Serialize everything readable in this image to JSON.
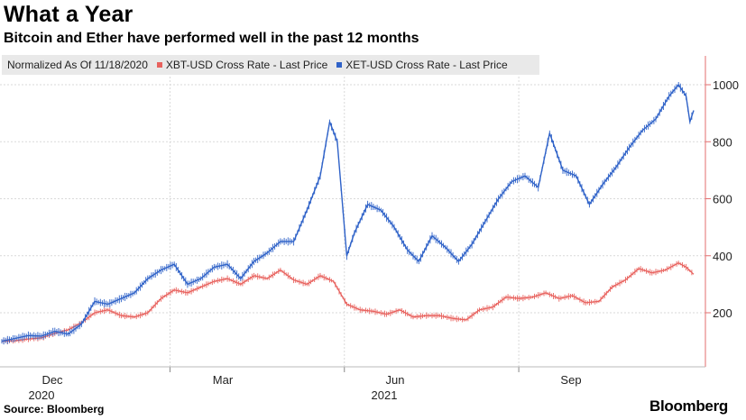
{
  "header": {
    "title": "What a Year",
    "subtitle": "Bitcoin and Ether have performed well in the past 12 months"
  },
  "legend": {
    "normalization": "Normalized As Of 11/18/2020",
    "items": [
      {
        "label": "XBT-USD Cross Rate - Last Price",
        "color": "#e8625e"
      },
      {
        "label": "XET-USD Cross Rate - Last Price",
        "color": "#2f62c8"
      }
    ]
  },
  "footer": {
    "source": "Source: Bloomberg",
    "logo": "Bloomberg"
  },
  "colors": {
    "xbt": "#e8625e",
    "xet": "#2f62c8",
    "axis": "#e36d6d",
    "grid": "#d9d9d9"
  },
  "chart_data": {
    "type": "line",
    "title": "What a Year",
    "subtitle": "Bitcoin and Ether have performed well in the past 12 months",
    "x_axis": {
      "ticks": [
        {
          "month": "Dec",
          "year": "2020",
          "date": "2020-12-01"
        },
        {
          "month": "Mar",
          "year": "",
          "date": "2021-03-01"
        },
        {
          "month": "Jun",
          "year": "2021",
          "date": "2021-06-01"
        },
        {
          "month": "Sep",
          "year": "",
          "date": "2021-09-01"
        }
      ],
      "range": [
        "2020-11-18",
        "2021-11-18"
      ]
    },
    "y_axis": {
      "ticks": [
        200,
        400,
        600,
        800,
        1000
      ],
      "range": [
        70,
        1100
      ],
      "position": "right"
    },
    "grid": true,
    "legend_position": "top-left",
    "series": [
      {
        "name": "XBT-USD Cross Rate - Last Price",
        "points": [
          [
            "2020-11-18",
            100
          ],
          [
            "2020-11-25",
            102
          ],
          [
            "2020-12-02",
            108
          ],
          [
            "2020-12-09",
            112
          ],
          [
            "2020-12-16",
            128
          ],
          [
            "2020-12-23",
            140
          ],
          [
            "2020-12-30",
            165
          ],
          [
            "2021-01-06",
            200
          ],
          [
            "2021-01-13",
            210
          ],
          [
            "2021-01-20",
            190
          ],
          [
            "2021-01-27",
            185
          ],
          [
            "2021-02-03",
            200
          ],
          [
            "2021-02-10",
            250
          ],
          [
            "2021-02-17",
            280
          ],
          [
            "2021-02-24",
            270
          ],
          [
            "2021-03-03",
            290
          ],
          [
            "2021-03-10",
            310
          ],
          [
            "2021-03-17",
            320
          ],
          [
            "2021-03-24",
            300
          ],
          [
            "2021-03-31",
            330
          ],
          [
            "2021-04-07",
            320
          ],
          [
            "2021-04-14",
            350
          ],
          [
            "2021-04-21",
            315
          ],
          [
            "2021-04-28",
            300
          ],
          [
            "2021-05-05",
            330
          ],
          [
            "2021-05-12",
            310
          ],
          [
            "2021-05-19",
            230
          ],
          [
            "2021-05-26",
            210
          ],
          [
            "2021-06-02",
            205
          ],
          [
            "2021-06-09",
            195
          ],
          [
            "2021-06-16",
            210
          ],
          [
            "2021-06-23",
            185
          ],
          [
            "2021-06-30",
            190
          ],
          [
            "2021-07-07",
            190
          ],
          [
            "2021-07-14",
            180
          ],
          [
            "2021-07-21",
            175
          ],
          [
            "2021-07-28",
            210
          ],
          [
            "2021-08-04",
            220
          ],
          [
            "2021-08-11",
            255
          ],
          [
            "2021-08-18",
            250
          ],
          [
            "2021-08-25",
            255
          ],
          [
            "2021-09-01",
            270
          ],
          [
            "2021-09-08",
            250
          ],
          [
            "2021-09-15",
            260
          ],
          [
            "2021-09-22",
            235
          ],
          [
            "2021-09-29",
            240
          ],
          [
            "2021-10-06",
            290
          ],
          [
            "2021-10-13",
            315
          ],
          [
            "2021-10-20",
            355
          ],
          [
            "2021-10-27",
            340
          ],
          [
            "2021-11-03",
            350
          ],
          [
            "2021-11-10",
            375
          ],
          [
            "2021-11-14",
            360
          ],
          [
            "2021-11-18",
            335
          ]
        ]
      },
      {
        "name": "XET-USD Cross Rate - Last Price",
        "points": [
          [
            "2020-11-18",
            100
          ],
          [
            "2020-11-25",
            110
          ],
          [
            "2020-12-02",
            120
          ],
          [
            "2020-12-09",
            118
          ],
          [
            "2020-12-16",
            135
          ],
          [
            "2020-12-23",
            125
          ],
          [
            "2020-12-30",
            160
          ],
          [
            "2021-01-06",
            240
          ],
          [
            "2021-01-13",
            230
          ],
          [
            "2021-01-20",
            250
          ],
          [
            "2021-01-27",
            270
          ],
          [
            "2021-02-03",
            320
          ],
          [
            "2021-02-10",
            350
          ],
          [
            "2021-02-17",
            370
          ],
          [
            "2021-02-24",
            300
          ],
          [
            "2021-03-03",
            320
          ],
          [
            "2021-03-10",
            360
          ],
          [
            "2021-03-17",
            370
          ],
          [
            "2021-03-24",
            320
          ],
          [
            "2021-03-31",
            380
          ],
          [
            "2021-04-07",
            410
          ],
          [
            "2021-04-14",
            450
          ],
          [
            "2021-04-21",
            450
          ],
          [
            "2021-04-28",
            560
          ],
          [
            "2021-05-05",
            680
          ],
          [
            "2021-05-10",
            870
          ],
          [
            "2021-05-14",
            800
          ],
          [
            "2021-05-19",
            400
          ],
          [
            "2021-05-23",
            480
          ],
          [
            "2021-05-30",
            580
          ],
          [
            "2021-06-06",
            560
          ],
          [
            "2021-06-13",
            500
          ],
          [
            "2021-06-20",
            420
          ],
          [
            "2021-06-26",
            380
          ],
          [
            "2021-07-03",
            470
          ],
          [
            "2021-07-10",
            430
          ],
          [
            "2021-07-17",
            380
          ],
          [
            "2021-07-24",
            440
          ],
          [
            "2021-07-31",
            520
          ],
          [
            "2021-08-07",
            600
          ],
          [
            "2021-08-14",
            660
          ],
          [
            "2021-08-21",
            680
          ],
          [
            "2021-08-28",
            640
          ],
          [
            "2021-09-03",
            830
          ],
          [
            "2021-09-10",
            700
          ],
          [
            "2021-09-17",
            680
          ],
          [
            "2021-09-24",
            580
          ],
          [
            "2021-10-01",
            650
          ],
          [
            "2021-10-08",
            710
          ],
          [
            "2021-10-15",
            780
          ],
          [
            "2021-10-22",
            840
          ],
          [
            "2021-10-29",
            880
          ],
          [
            "2021-11-05",
            960
          ],
          [
            "2021-11-10",
            1000
          ],
          [
            "2021-11-14",
            960
          ],
          [
            "2021-11-16",
            870
          ],
          [
            "2021-11-18",
            910
          ]
        ]
      }
    ]
  }
}
